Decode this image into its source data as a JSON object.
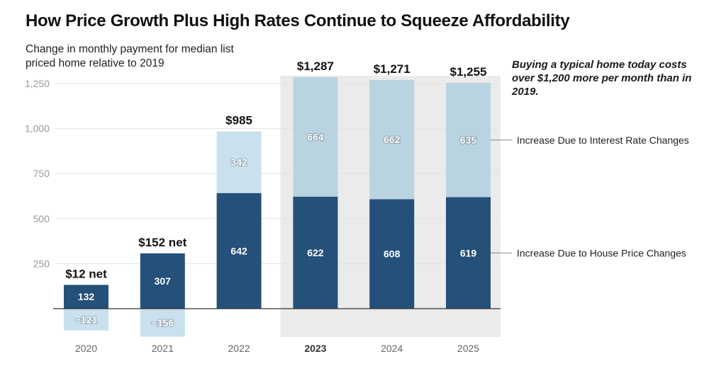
{
  "chart_data": {
    "type": "bar",
    "stacked": true,
    "title": "How Price Growth Plus High Rates Continue to Squeeze Affordability",
    "subtitle": "Change in monthly payment for median list priced home relative to 2019",
    "annotation": "Buying a typical home today costs over $1,200 more per month than in 2019.",
    "categories": [
      "2020",
      "2021",
      "2022",
      "2023",
      "2024",
      "2025"
    ],
    "highlighted_categories": [
      "2023",
      "2024",
      "2025"
    ],
    "bold_category": "2023",
    "series": [
      {
        "name": "Increase Due to House Price Changes",
        "values": [
          132,
          307,
          642,
          622,
          608,
          619
        ],
        "color": "#24507a"
      },
      {
        "name": "Increase Due to Interest Rate Changes",
        "values": [
          -121,
          -156,
          342,
          664,
          662,
          635
        ],
        "color": "#c9e1ef"
      }
    ],
    "value_labels": [
      "132",
      "307",
      "642",
      "622",
      "608",
      "619"
    ],
    "rate_labels": [
      "−121",
      "−156",
      "342",
      "664",
      "662",
      "635"
    ],
    "totals": [
      "$12 net",
      "$152 net",
      "$985",
      "$1,287",
      "$1,271",
      "$1,255"
    ],
    "yticks": [
      250,
      500,
      750,
      1000,
      1250
    ],
    "ytick_labels": [
      "250",
      "500",
      "750",
      "1,000",
      "1,250"
    ],
    "ylim": [
      -160,
      1290
    ],
    "grid": true,
    "highlight_color": "#ebebeb",
    "highlight_rate_color": "#bad3e1"
  }
}
